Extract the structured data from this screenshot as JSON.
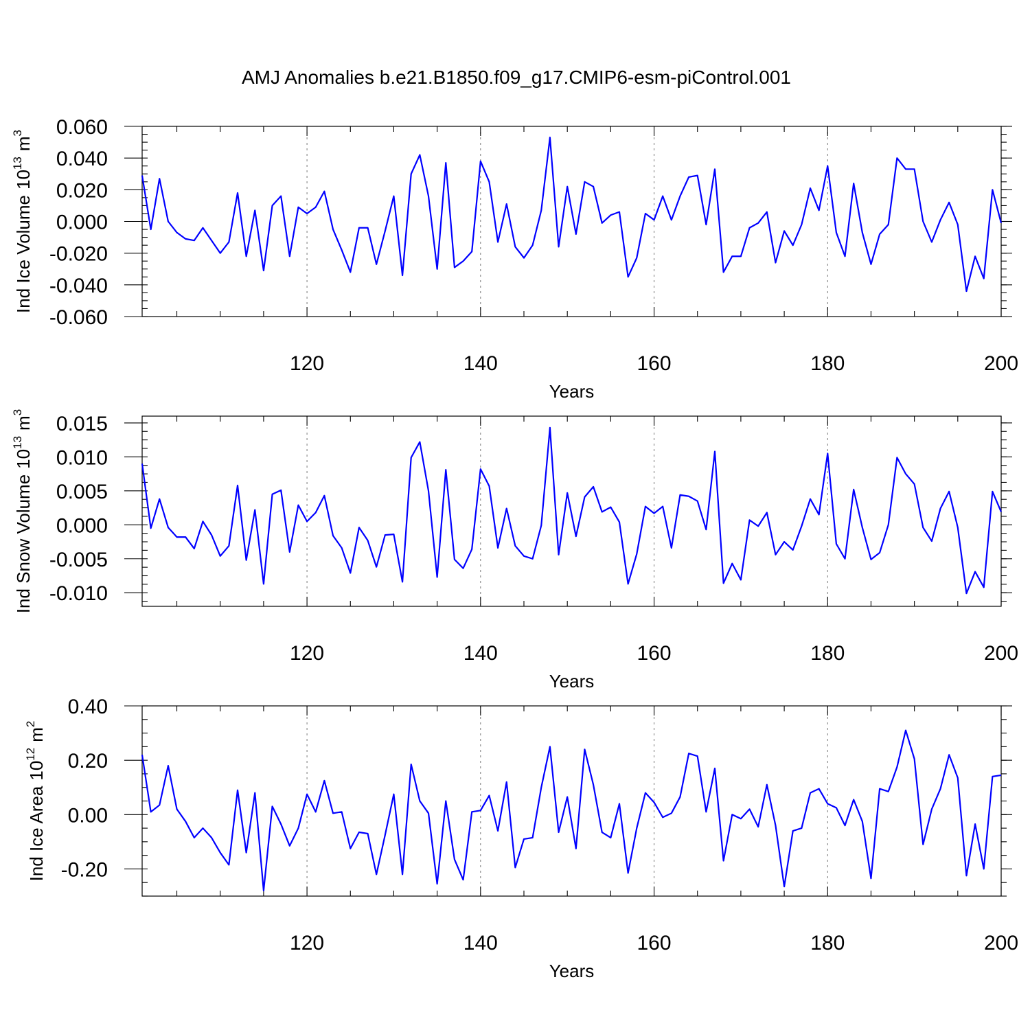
{
  "title": "AMJ Anomalies b.e21.B1850.f09_g17.CMIP6-esm-piControl.001",
  "colors": {
    "series": "#0000ff",
    "axis": "#000000",
    "grid": "#777777"
  },
  "chart_data": [
    {
      "type": "line",
      "name": "ice-volume",
      "ylabel": "Ind Ice Volume",
      "ylabel_power": "10",
      "ylabel_exp": "13",
      "ylabel_unit": "m",
      "ylabel_unit_exp": "3",
      "xlabel": "Years",
      "xlim": [
        101,
        200
      ],
      "ylim": [
        -0.06,
        0.06
      ],
      "xticks": [
        120,
        140,
        160,
        180,
        200
      ],
      "xtick_labels": [
        "120",
        "140",
        "160",
        "180",
        "200"
      ],
      "yticks": [
        -0.06,
        -0.04,
        -0.02,
        0.0,
        0.02,
        0.04,
        0.06
      ],
      "ytick_labels": [
        "-0.060",
        "-0.040",
        "-0.020",
        "0.000",
        "0.020",
        "0.040",
        "0.060"
      ],
      "x_start": 101,
      "values": [
        0.029,
        -0.005,
        0.027,
        0.0,
        -0.007,
        -0.011,
        -0.012,
        -0.004,
        -0.012,
        -0.02,
        -0.013,
        0.018,
        -0.022,
        0.007,
        -0.031,
        0.01,
        0.016,
        -0.022,
        0.009,
        0.005,
        0.009,
        0.019,
        -0.005,
        -0.018,
        -0.032,
        -0.004,
        -0.004,
        -0.027,
        -0.006,
        0.016,
        -0.034,
        0.03,
        0.042,
        0.016,
        -0.03,
        0.037,
        -0.029,
        -0.025,
        -0.019,
        0.038,
        0.025,
        -0.013,
        0.011,
        -0.016,
        -0.023,
        -0.015,
        0.007,
        0.053,
        -0.016,
        0.022,
        -0.008,
        0.025,
        0.022,
        -0.001,
        0.004,
        0.006,
        -0.035,
        -0.023,
        0.005,
        0.001,
        0.016,
        0.001,
        0.016,
        0.028,
        0.029,
        -0.002,
        0.033,
        -0.032,
        -0.022,
        -0.022,
        -0.004,
        -0.001,
        0.006,
        -0.026,
        -0.006,
        -0.015,
        -0.002,
        0.021,
        0.007,
        0.035,
        -0.007,
        -0.022,
        0.024,
        -0.007,
        -0.027,
        -0.008,
        -0.002,
        0.04,
        0.033,
        0.033,
        0.0,
        -0.013,
        0.001,
        0.012,
        -0.002,
        -0.044,
        -0.022,
        -0.036,
        0.02,
        -0.001
      ]
    },
    {
      "type": "line",
      "name": "snow-volume",
      "ylabel": "Ind Snow Volume",
      "ylabel_power": "10",
      "ylabel_exp": "13",
      "ylabel_unit": "m",
      "ylabel_unit_exp": "3",
      "xlabel": "Years",
      "xlim": [
        101,
        200
      ],
      "ylim": [
        -0.012,
        0.016
      ],
      "xticks": [
        120,
        140,
        160,
        180,
        200
      ],
      "xtick_labels": [
        "120",
        "140",
        "160",
        "180",
        "200"
      ],
      "yticks": [
        -0.01,
        -0.005,
        0.0,
        0.005,
        0.01,
        0.015
      ],
      "ytick_labels": [
        "-0.010",
        "-0.005",
        "0.000",
        "0.005",
        "0.010",
        "0.015"
      ],
      "x_start": 101,
      "values": [
        0.009,
        -0.0005,
        0.0038,
        -0.0004,
        -0.0018,
        -0.0018,
        -0.0035,
        0.0005,
        -0.0015,
        -0.0046,
        -0.0031,
        0.0058,
        -0.0052,
        0.0022,
        -0.0087,
        0.0045,
        0.0051,
        -0.004,
        0.0029,
        0.0005,
        0.0018,
        0.0043,
        -0.0016,
        -0.0034,
        -0.0071,
        -0.0004,
        -0.0023,
        -0.0062,
        -0.0015,
        -0.0014,
        -0.0084,
        0.0099,
        0.0122,
        0.005,
        -0.0077,
        0.0081,
        -0.0051,
        -0.0064,
        -0.0036,
        0.0082,
        0.0057,
        -0.0034,
        0.0024,
        -0.0031,
        -0.0046,
        -0.005,
        -0.0001,
        0.0143,
        -0.0044,
        0.0047,
        -0.0017,
        0.0041,
        0.0056,
        0.0019,
        0.0026,
        0.0004,
        -0.0087,
        -0.0043,
        0.0027,
        0.0017,
        0.0027,
        -0.0034,
        0.0044,
        0.0042,
        0.0035,
        -0.0007,
        0.0108,
        -0.0086,
        -0.0057,
        -0.0081,
        0.0007,
        -0.0002,
        0.0018,
        -0.0044,
        -0.0025,
        -0.0037,
        -0.0002,
        0.0038,
        0.0015,
        0.0105,
        -0.0028,
        -0.005,
        0.0052,
        -0.0004,
        -0.0051,
        -0.0041,
        0.0,
        0.0099,
        0.0075,
        0.006,
        -0.0004,
        -0.0024,
        0.0024,
        0.0049,
        -0.0004,
        -0.0101,
        -0.0069,
        -0.0092,
        0.0049,
        0.0019
      ]
    },
    {
      "type": "line",
      "name": "ice-area",
      "ylabel": "Ind Ice Area",
      "ylabel_power": "10",
      "ylabel_exp": "12",
      "ylabel_unit": "m",
      "ylabel_unit_exp": "2",
      "xlabel": "Years",
      "xlim": [
        101,
        200
      ],
      "ylim": [
        -0.3,
        0.4
      ],
      "xticks": [
        120,
        140,
        160,
        180,
        200
      ],
      "xtick_labels": [
        "120",
        "140",
        "160",
        "180",
        "200"
      ],
      "yticks": [
        -0.2,
        0.0,
        0.2,
        0.4
      ],
      "ytick_labels": [
        "-0.20",
        "0.00",
        "0.20",
        "0.40"
      ],
      "x_start": 101,
      "values": [
        0.22,
        0.01,
        0.035,
        0.18,
        0.02,
        -0.025,
        -0.085,
        -0.05,
        -0.085,
        -0.14,
        -0.185,
        0.09,
        -0.14,
        0.08,
        -0.28,
        0.03,
        -0.035,
        -0.115,
        -0.05,
        0.075,
        0.01,
        0.125,
        0.005,
        0.01,
        -0.125,
        -0.065,
        -0.07,
        -0.22,
        -0.075,
        0.075,
        -0.22,
        0.185,
        0.05,
        0.005,
        -0.255,
        0.05,
        -0.165,
        -0.24,
        0.01,
        0.015,
        0.07,
        -0.06,
        0.12,
        -0.195,
        -0.09,
        -0.085,
        0.1,
        0.25,
        -0.065,
        0.065,
        -0.125,
        0.24,
        0.11,
        -0.065,
        -0.085,
        0.04,
        -0.215,
        -0.05,
        0.08,
        0.045,
        -0.01,
        0.005,
        0.065,
        0.225,
        0.215,
        0.01,
        0.17,
        -0.17,
        0.0,
        -0.015,
        0.02,
        -0.045,
        0.11,
        -0.04,
        -0.265,
        -0.06,
        -0.05,
        0.08,
        0.095,
        0.04,
        0.025,
        -0.04,
        0.055,
        -0.025,
        -0.235,
        0.095,
        0.085,
        0.175,
        0.31,
        0.205,
        -0.11,
        0.02,
        0.095,
        0.22,
        0.135,
        -0.225,
        -0.035,
        -0.2,
        0.14,
        0.145
      ]
    }
  ]
}
